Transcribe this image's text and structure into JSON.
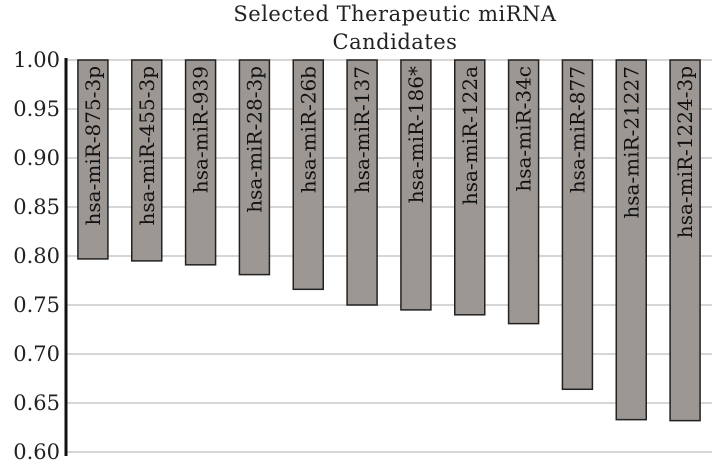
{
  "chart_data": {
    "type": "bar",
    "title_line1": "Selected Therapeutic miRNA",
    "title_line2": "Candidates",
    "categories": [
      "hsa-miR-875-3p",
      "hsa-miR-455-3p",
      "hsa-miR-939",
      "hsa-miR-28-3p",
      "hsa-miR-26b",
      "hsa-miR-137",
      "hsa-miR-186*",
      "hsa-miR-122a",
      "hsa-miR-34c",
      "hsa-miR-877",
      "hsa-miR-21227",
      "hsa-miR-1224-3p"
    ],
    "values": [
      0.797,
      0.795,
      0.791,
      0.781,
      0.766,
      0.75,
      0.745,
      0.74,
      0.731,
      0.664,
      0.633,
      0.632
    ],
    "ylim": [
      0.6,
      1.0
    ],
    "yticks": [
      "1.00",
      "0.95",
      "0.90",
      "0.85",
      "0.80",
      "0.75",
      "0.70",
      "0.65",
      "0.60"
    ],
    "bars_hang_from": 1.0,
    "grid": true,
    "colors": {
      "bar": "#9c9793",
      "bar_stroke": "#222222",
      "grid": "#c8c8c8",
      "axis": "#111111"
    }
  }
}
